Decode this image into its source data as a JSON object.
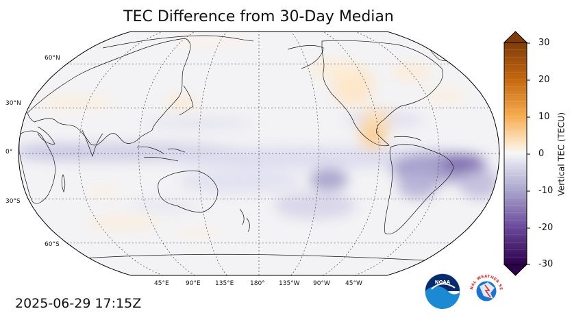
{
  "map": {
    "title": "TEC Difference from 30-Day Median",
    "timestamp": "2025-06-29 17:15Z",
    "projection": "Robinson, centered on 180°",
    "latitude_labels": [
      "60°N",
      "30°N",
      "0°",
      "30°S",
      "60°S"
    ],
    "longitude_labels": [
      "45°E",
      "90°E",
      "135°E",
      "180°",
      "135°W",
      "90°W",
      "45°W"
    ],
    "colorbar": {
      "label": "Vertical TEC (TECU)",
      "ticks": [
        "30",
        "20",
        "10",
        "0",
        "-10",
        "-20",
        "-30"
      ],
      "range": [
        -30,
        30
      ],
      "extend": "both",
      "colormap": "orange (positive) to purple (negative)",
      "positive_color": "#8a4406",
      "negative_color": "#2d004b"
    },
    "anomaly_regions": [
      {
        "region": "Central/North America and Mexico",
        "sign": "positive",
        "approx_tecu": 6
      },
      {
        "region": "North Pacific near 45°N",
        "sign": "positive",
        "approx_tecu": 3
      },
      {
        "region": "Equatorial Indian Ocean and Pacific",
        "sign": "negative",
        "approx_tecu": -6
      },
      {
        "region": "Eastern South America / South Atlantic",
        "sign": "negative",
        "approx_tecu": -15
      },
      {
        "region": "Southern subtropical Pacific",
        "sign": "negative",
        "approx_tecu": -8
      }
    ]
  },
  "logos": {
    "noaa": "NOAA",
    "nws": "NATIONAL WEATHER SERVICE",
    "noaa_color": "#1b72b8",
    "nws_color": "#e02828"
  }
}
